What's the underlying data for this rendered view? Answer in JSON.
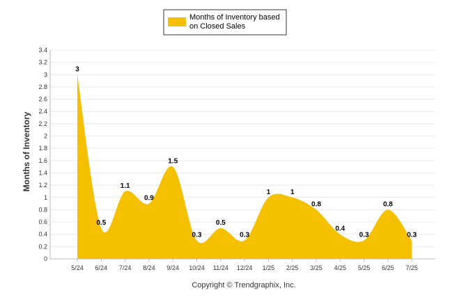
{
  "chart_data": {
    "type": "area",
    "categories": [
      "5/24",
      "6/24",
      "7/24",
      "8/24",
      "9/24",
      "10/24",
      "11/24",
      "12/24",
      "1/25",
      "2/25",
      "3/25",
      "4/25",
      "5/25",
      "6/25",
      "7/25"
    ],
    "series": [
      {
        "name": "Months of Inventory based on Closed Sales",
        "values": [
          3,
          0.5,
          1.1,
          0.9,
          1.5,
          0.3,
          0.5,
          0.3,
          1,
          1,
          0.8,
          0.4,
          0.3,
          0.8,
          0.3
        ],
        "color": "#f5c000"
      }
    ],
    "ylabel": "Months of Inventory",
    "xlabel": "",
    "ylim": [
      0,
      3.4
    ],
    "yticks": [
      "0",
      "0.2",
      "0.4",
      "0.6",
      "0.8",
      "1",
      "1.2",
      "1.4",
      "1.6",
      "1.8",
      "2",
      "2.2",
      "2.4",
      "2.6",
      "2.8",
      "3",
      "3.2",
      "3.4"
    ],
    "grid": true,
    "legend_position": "top-center",
    "data_labels": [
      "3",
      "0.5",
      "1.1",
      "0.9",
      "1.5",
      "0.3",
      "0.5",
      "0.3",
      "1",
      "1",
      "0.8",
      "0.4",
      "0.3",
      "0.8",
      "0.3"
    ]
  },
  "legend": {
    "line1": "Months of Inventory based",
    "line2": "on Closed Sales"
  },
  "footer": {
    "copyright": "Copyright © Trendgraphix, Inc."
  }
}
